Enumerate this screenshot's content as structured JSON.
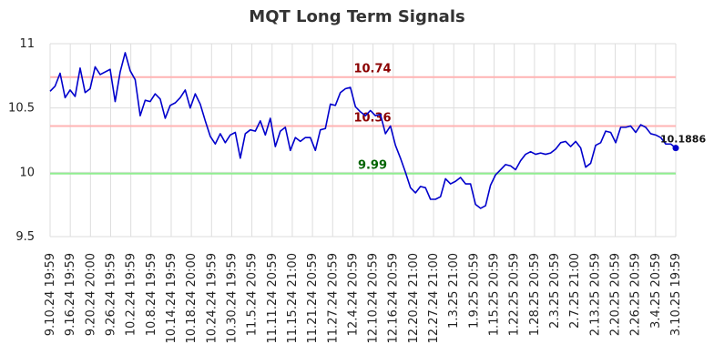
{
  "chart_data": {
    "type": "line",
    "title": "MQT Long Term Signals",
    "ylim": [
      9.5,
      11
    ],
    "yticks": [
      "9.5",
      "10",
      "10.5",
      "11"
    ],
    "xtick_labels": [
      "9.10.24 19:59",
      "9.16.24 19:59",
      "9.20.24 20:00",
      "9.26.24 19:59",
      "10.2.24 19:59",
      "10.8.24 19:59",
      "10.14.24 19:59",
      "10.18.24 20:00",
      "10.24.24 19:59",
      "10.30.24 19:59",
      "11.5.24 20:59",
      "11.11.24 20:59",
      "11.15.24 21:00",
      "11.21.24 20:59",
      "11.27.24 20:59",
      "12.4.24 20:59",
      "12.10.24 20:59",
      "12.16.24 20:59",
      "12.20.24 21:00",
      "12.27.24 21:00",
      "1.3.25 21:00",
      "1.9.25 20:59",
      "1.15.25 20:59",
      "1.22.25 20:59",
      "1.28.25 20:59",
      "2.3.25 20:59",
      "2.7.25 21:00",
      "2.13.25 20:59",
      "2.20.25 20:59",
      "2.26.25 20:59",
      "3.4.25 20:59",
      "3.10.25 19:59"
    ],
    "grid": true,
    "levels": [
      {
        "value": 10.74,
        "label": "10.74",
        "color": "#ffb3b3",
        "label_color": "#8b0000"
      },
      {
        "value": 10.36,
        "label": "10.36",
        "color": "#ffb3b3",
        "label_color": "#8b0000"
      },
      {
        "value": 9.99,
        "label": "9.99",
        "color": "#90ee90",
        "label_color": "#006400"
      }
    ],
    "series": [
      {
        "color": "#0000cc",
        "values": [
          10.63,
          10.67,
          10.77,
          10.58,
          10.64,
          10.59,
          10.81,
          10.62,
          10.65,
          10.82,
          10.76,
          10.78,
          10.8,
          10.55,
          10.78,
          10.93,
          10.79,
          10.72,
          10.44,
          10.56,
          10.55,
          10.61,
          10.57,
          10.42,
          10.52,
          10.54,
          10.58,
          10.64,
          10.5,
          10.61,
          10.53,
          10.4,
          10.28,
          10.22,
          10.3,
          10.23,
          10.29,
          10.31,
          10.11,
          10.3,
          10.33,
          10.32,
          10.4,
          10.29,
          10.42,
          10.2,
          10.32,
          10.35,
          10.17,
          10.27,
          10.24,
          10.27,
          10.27,
          10.17,
          10.33,
          10.34,
          10.53,
          10.52,
          10.62,
          10.65,
          10.66,
          10.51,
          10.47,
          10.44,
          10.48,
          10.44,
          10.45,
          10.3,
          10.36,
          10.21,
          10.11,
          10.0,
          9.88,
          9.84,
          9.89,
          9.88,
          9.79,
          9.79,
          9.81,
          9.95,
          9.91,
          9.93,
          9.96,
          9.91,
          9.91,
          9.75,
          9.72,
          9.74,
          9.9,
          9.98,
          10.02,
          10.06,
          10.05,
          10.02,
          10.09,
          10.14,
          10.16,
          10.14,
          10.15,
          10.14,
          10.15,
          10.18,
          10.23,
          10.24,
          10.2,
          10.24,
          10.19,
          10.04,
          10.07,
          10.21,
          10.23,
          10.32,
          10.31,
          10.23,
          10.35,
          10.35,
          10.36,
          10.31,
          10.37,
          10.35,
          10.3,
          10.29,
          10.27,
          10.22,
          10.22,
          10.1886
        ]
      }
    ],
    "last_value_label": "10.1886"
  }
}
